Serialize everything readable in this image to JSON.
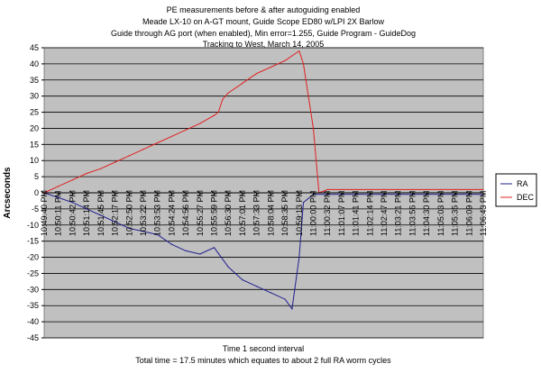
{
  "chart_data": {
    "type": "line",
    "title_lines": [
      "PE measurements before & after autoguiding enabled",
      "Meade LX-10 on A-GT mount, Guide Scope ED80 w/LPI 2X Barlow",
      "Guide through AG port (when enabled), Min error=1.255, Guide Program - GuideDog",
      "Tracking to West, March 14, 2005"
    ],
    "ylabel": "Arcseconds",
    "xlabel_lines": [
      "Time 1 second interval",
      "Total time = 17.5 minutes which equates to about 2 full RA worm cycles"
    ],
    "ylim": [
      -45,
      45
    ],
    "y_ticks": [
      45,
      40,
      35,
      30,
      25,
      20,
      15,
      10,
      5,
      0,
      -5,
      -10,
      -15,
      -20,
      -25,
      -30,
      -35,
      -40,
      -45
    ],
    "x_tick_labels": [
      "10:49:40 PM",
      "10:50:11 PM",
      "10:50:42 PM",
      "10:51:14 PM",
      "10:51:45 PM",
      "10:52:17 PM",
      "10:52:50 PM",
      "10:53:22 PM",
      "10:53:53 PM",
      "10:54:24 PM",
      "10:54:56 PM",
      "10:55:27 PM",
      "10:55:59 PM",
      "10:56:30 PM",
      "10:57:01 PM",
      "10:57:33 PM",
      "10:58:04 PM",
      "10:58:35 PM",
      "10:59:13 PM",
      "11:00:00 PM",
      "11:00:32 PM",
      "11:01:07 PM",
      "11:01:41 PM",
      "11:02:14 PM",
      "11:02:47 PM",
      "11:03:21 PM",
      "11:03:56 PM",
      "11:04:30 PM",
      "11:05:03 PM",
      "11:05:35 PM",
      "11:06:09 PM",
      "11:06:43 PM"
    ],
    "grid": true,
    "legend_position": "right",
    "series": [
      {
        "name": "RA",
        "color": "#1f1f8f",
        "x": [
          0,
          1,
          2,
          3,
          4,
          5,
          6,
          7,
          8,
          9,
          10,
          11,
          12,
          13,
          14,
          15,
          16,
          17,
          17.5,
          18,
          18.3,
          19,
          20,
          21,
          22,
          23,
          24,
          25,
          26,
          27,
          28,
          29,
          30,
          31
        ],
        "values": [
          0,
          -1.5,
          -3,
          -5,
          -7,
          -9,
          -11,
          -12,
          -13,
          -16,
          -18,
          -19,
          -17,
          -23,
          -27,
          -29,
          -31,
          -33,
          -36,
          -20,
          -3,
          -0.5,
          -0.5,
          -0.5,
          -0.5,
          -0.5,
          -0.5,
          -0.5,
          -0.5,
          -0.5,
          -0.5,
          -0.5,
          -0.5,
          -0.5
        ]
      },
      {
        "name": "DEC",
        "color": "#e02020",
        "x": [
          0,
          1,
          2,
          3,
          4,
          5,
          6,
          7,
          8,
          9,
          10,
          11,
          12,
          12.3,
          12.6,
          13,
          14,
          15,
          16,
          17,
          18,
          18.3,
          19,
          19.4,
          20,
          21,
          22,
          23,
          24,
          25,
          26,
          27,
          28,
          29,
          30,
          31
        ],
        "values": [
          0,
          2,
          4,
          6,
          7.5,
          9.5,
          11.5,
          13.5,
          15.5,
          17.5,
          19.5,
          21.5,
          24,
          25,
          29,
          31,
          34,
          37,
          39,
          41,
          44,
          40,
          20,
          0,
          1,
          1,
          1,
          1,
          1,
          1,
          1,
          1,
          1,
          1,
          1,
          1
        ]
      }
    ]
  }
}
